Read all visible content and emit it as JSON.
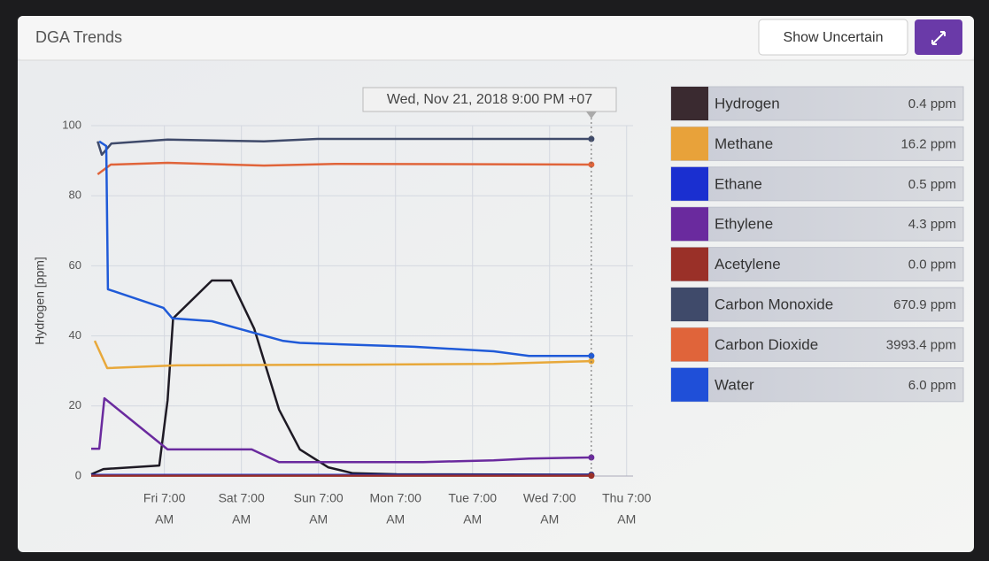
{
  "header": {
    "title": "DGA Trends",
    "button": "Show Uncertain"
  },
  "chart_data": {
    "type": "line",
    "ylabel": "Hydrogen [ppm]",
    "annotation": "Wed, Nov 21, 2018 9:00 PM +07",
    "xlim": [
      1.2,
      170
    ],
    "xticks": [
      {
        "value": 24,
        "label": [
          "Fri 7:00",
          "AM"
        ]
      },
      {
        "value": 48,
        "label": [
          "Sat 7:00",
          "AM"
        ]
      },
      {
        "value": 72,
        "label": [
          "Sun 7:00",
          "AM"
        ]
      },
      {
        "value": 96,
        "label": [
          "Mon 7:00",
          "AM"
        ]
      },
      {
        "value": 120,
        "label": [
          "Tue 7:00",
          "AM"
        ]
      },
      {
        "value": 144,
        "label": [
          "Wed 7:00",
          "AM"
        ]
      },
      {
        "value": 168,
        "label": [
          "Thu 7:00",
          "AM"
        ]
      }
    ],
    "ylim": [
      0,
      100
    ],
    "yticks": [
      0,
      20,
      40,
      60,
      80,
      100
    ],
    "grid": true,
    "series": [
      {
        "name": "Hydrogen",
        "color": "#1e1a24",
        "swatch": "#3a2a30",
        "reading": "0.4 ppm",
        "x": [
          1.2,
          5,
          22.4,
          25,
          26.7,
          38.8,
          44.8,
          52,
          59.7,
          66.2,
          75,
          82.7,
          96.4,
          157
        ],
        "values": [
          0.5,
          2,
          3,
          21.7,
          45,
          55.8,
          55.8,
          42,
          19,
          7.6,
          2.5,
          0.8,
          0.5,
          0.4
        ]
      },
      {
        "name": "Methane",
        "color": "#e8a83a",
        "swatch": "#e8a23a",
        "reading": "16.2 ppm",
        "x": [
          2.3,
          6.2,
          27.8,
          82.7,
          126.6,
          157
        ],
        "values": [
          38.6,
          30.8,
          31.6,
          31.8,
          32,
          32.8
        ]
      },
      {
        "name": "Ethane",
        "color": "#1a2fd0",
        "swatch": "#1a2fd0",
        "reading": "0.5 ppm",
        "x": [
          1.2,
          157
        ],
        "values": [
          0.3,
          0.3
        ]
      },
      {
        "name": "Ethylene",
        "color": "#6a2a9e",
        "swatch": "#6a2a9e",
        "reading": "4.3 ppm",
        "x": [
          1.2,
          3.7,
          5.3,
          25,
          51.2,
          59.7,
          104.6,
          126.6,
          137.6,
          157
        ],
        "values": [
          7.8,
          7.8,
          22.2,
          7.6,
          7.6,
          4,
          4,
          4.5,
          5,
          5.3
        ]
      },
      {
        "name": "Acetylene",
        "color": "#9a3028",
        "swatch": "#9a3028",
        "reading": "0.0 ppm",
        "x": [
          1.2,
          157
        ],
        "values": [
          0.1,
          0.1
        ]
      },
      {
        "name": "Carbon Monoxide",
        "color": "#3f4a6a",
        "swatch": "#3f4a6a",
        "reading": "670.9 ppm",
        "x": [
          3.2,
          4.5,
          7.5,
          25,
          55,
          71.7,
          157
        ],
        "values": [
          95.5,
          91.7,
          94.9,
          96,
          95.5,
          96.2,
          96.2
        ]
      },
      {
        "name": "Carbon Dioxide",
        "color": "#e0643a",
        "swatch": "#e0643a",
        "reading": "3993.4 ppm",
        "x": [
          3.2,
          7.3,
          25,
          55,
          77.2,
          157
        ],
        "values": [
          86.1,
          88.9,
          89.4,
          88.6,
          89.1,
          88.9
        ]
      },
      {
        "name": "Water",
        "color": "#1f5ad8",
        "swatch": "#1f4fd8",
        "reading": "6.0 ppm",
        "x": [
          3.7,
          5.9,
          6.4,
          23.7,
          26.5,
          38.8,
          60.8,
          66.2,
          101.9,
          126.6,
          137.6,
          157
        ],
        "values": [
          95.5,
          94.2,
          53.3,
          48,
          45,
          44.2,
          38.6,
          38,
          36.9,
          35.6,
          34.3,
          34.3
        ]
      }
    ]
  }
}
